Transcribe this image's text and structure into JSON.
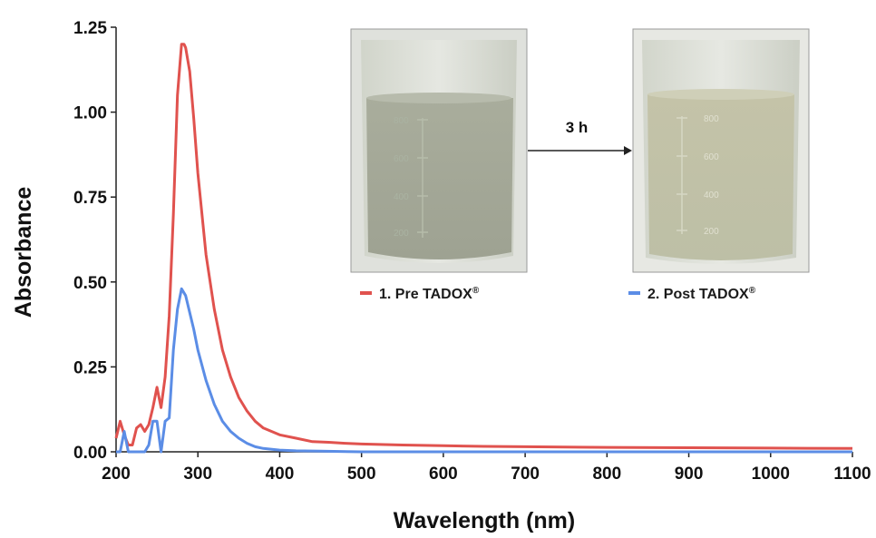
{
  "chart_data": {
    "type": "line",
    "title": "",
    "xlabel": "Wavelength (nm)",
    "ylabel": "Absorbance",
    "xlim": [
      200,
      1100
    ],
    "ylim": [
      0,
      1.25
    ],
    "x_ticks": [
      "200",
      "300",
      "400",
      "500",
      "600",
      "700",
      "800",
      "900",
      "1000",
      "1100"
    ],
    "y_ticks": [
      "0.00",
      "0.25",
      "0.50",
      "0.75",
      "1.00",
      "1.25"
    ],
    "grid": false,
    "legend": "top-right",
    "series": [
      {
        "name": "1. Pre TADOX",
        "color": "#e0524e",
        "x": [
          200,
          205,
          210,
          215,
          220,
          225,
          230,
          235,
          240,
          245,
          250,
          255,
          260,
          265,
          270,
          275,
          280,
          283,
          285,
          290,
          295,
          300,
          310,
          320,
          330,
          340,
          350,
          360,
          370,
          380,
          390,
          400,
          420,
          440,
          460,
          480,
          500,
          550,
          600,
          650,
          700,
          800,
          900,
          1000,
          1100
        ],
        "y": [
          0.04,
          0.09,
          0.05,
          0.02,
          0.02,
          0.07,
          0.08,
          0.06,
          0.08,
          0.13,
          0.19,
          0.13,
          0.22,
          0.4,
          0.7,
          1.05,
          1.2,
          1.2,
          1.19,
          1.12,
          0.98,
          0.82,
          0.58,
          0.42,
          0.3,
          0.22,
          0.16,
          0.12,
          0.09,
          0.07,
          0.06,
          0.05,
          0.04,
          0.03,
          0.028,
          0.025,
          0.023,
          0.02,
          0.018,
          0.016,
          0.015,
          0.013,
          0.012,
          0.011,
          0.01
        ]
      },
      {
        "name": "2. Post TADOX",
        "color": "#5b8de6",
        "x": [
          200,
          205,
          210,
          215,
          220,
          225,
          230,
          235,
          240,
          245,
          250,
          255,
          260,
          265,
          270,
          275,
          280,
          285,
          290,
          295,
          300,
          310,
          320,
          330,
          340,
          350,
          360,
          370,
          380,
          400,
          420,
          450,
          500,
          600,
          700,
          800,
          900,
          1000,
          1100
        ],
        "y": [
          0.0,
          0.0,
          0.06,
          0.0,
          0.0,
          0.0,
          0.0,
          0.0,
          0.02,
          0.09,
          0.09,
          0.0,
          0.09,
          0.1,
          0.3,
          0.42,
          0.48,
          0.46,
          0.41,
          0.36,
          0.3,
          0.21,
          0.14,
          0.09,
          0.06,
          0.04,
          0.025,
          0.015,
          0.01,
          0.005,
          0.003,
          0.002,
          0.0,
          0.0,
          0.0,
          0.0,
          0.0,
          0.0,
          0.0
        ]
      }
    ]
  },
  "legend": {
    "pre_label": "1. Pre TADOX",
    "post_label": "2. Post TADOX",
    "registered": "®"
  },
  "inset": {
    "arrow_label": "3 h",
    "beaker_marks": [
      "800",
      "600",
      "400",
      "200"
    ]
  }
}
